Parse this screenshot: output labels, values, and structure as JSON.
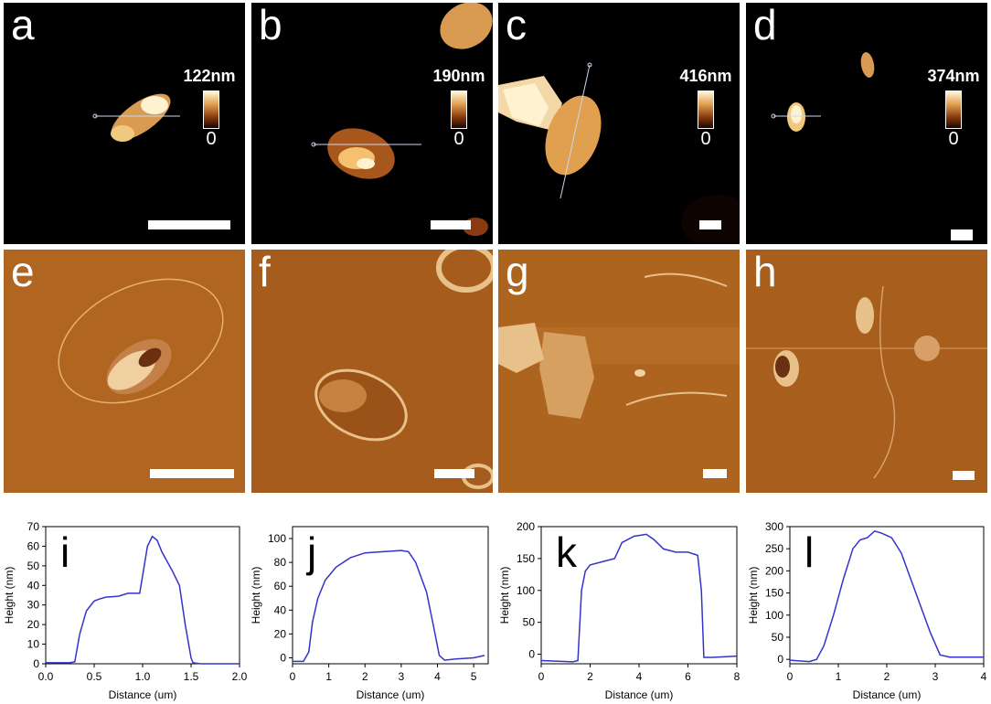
{
  "images": [
    {
      "label": "a",
      "colorbar_max": "122nm",
      "colorbar_min": "0"
    },
    {
      "label": "b",
      "colorbar_max": "190nm",
      "colorbar_min": "0"
    },
    {
      "label": "c",
      "colorbar_max": "416nm",
      "colorbar_min": "0"
    },
    {
      "label": "d",
      "colorbar_max": "374nm",
      "colorbar_min": "0"
    },
    {
      "label": "e"
    },
    {
      "label": "f"
    },
    {
      "label": "g"
    },
    {
      "label": "h"
    }
  ],
  "colors": {
    "line": "#3333cc",
    "afm_dark": "#000000",
    "afm_phase": "#a0561c"
  },
  "chart_data": [
    {
      "type": "line",
      "panel": "i",
      "xlabel": "Distance (um)",
      "ylabel": "Height (nm)",
      "xlim": [
        0,
        2.0
      ],
      "ylim": [
        0,
        70
      ],
      "xticks": [
        "0.0",
        "0.5",
        "1.0",
        "1.5",
        "2.0"
      ],
      "yticks": [
        "0",
        "10",
        "20",
        "30",
        "40",
        "50",
        "60",
        "70"
      ],
      "x": [
        0.0,
        0.25,
        0.3,
        0.35,
        0.42,
        0.5,
        0.55,
        0.62,
        0.75,
        0.85,
        0.97,
        1.0,
        1.05,
        1.1,
        1.15,
        1.2,
        1.3,
        1.38,
        1.44,
        1.5,
        1.52,
        1.6,
        2.0
      ],
      "y": [
        0.5,
        0.5,
        1,
        15,
        27,
        32,
        33,
        34,
        34.5,
        36,
        36,
        45,
        60,
        65,
        63,
        57,
        48,
        40,
        20,
        3,
        0.5,
        0,
        0
      ]
    },
    {
      "type": "line",
      "panel": "j",
      "xlabel": "Distance (um)",
      "ylabel": "Height (nm)",
      "xlim": [
        0,
        5.4
      ],
      "ylim": [
        -5,
        110
      ],
      "xticks": [
        "0",
        "1",
        "2",
        "3",
        "4",
        "5"
      ],
      "yticks": [
        "0",
        "20",
        "40",
        "60",
        "80",
        "100"
      ],
      "x": [
        0.0,
        0.3,
        0.45,
        0.55,
        0.7,
        0.9,
        1.2,
        1.6,
        2.0,
        2.5,
        3.0,
        3.2,
        3.4,
        3.7,
        3.9,
        4.05,
        4.2,
        4.5,
        5.0,
        5.3
      ],
      "y": [
        -3,
        -3,
        5,
        30,
        50,
        65,
        76,
        84,
        88,
        89,
        90,
        89,
        80,
        55,
        25,
        2,
        -2,
        -1,
        0,
        2
      ]
    },
    {
      "type": "line",
      "panel": "k",
      "xlabel": "Distance (um)",
      "ylabel": "Height (nm)",
      "xlim": [
        0,
        8
      ],
      "ylim": [
        -15,
        200
      ],
      "xticks": [
        "0",
        "2",
        "4",
        "6",
        "8"
      ],
      "yticks": [
        "0",
        "50",
        "100",
        "150",
        "200"
      ],
      "x": [
        0.0,
        1.3,
        1.5,
        1.65,
        1.8,
        2.0,
        2.5,
        3.0,
        3.3,
        3.8,
        4.3,
        4.6,
        5.0,
        5.5,
        6.0,
        6.4,
        6.55,
        6.65,
        7.0,
        8.0
      ],
      "y": [
        -10,
        -12,
        -10,
        100,
        130,
        140,
        145,
        150,
        175,
        185,
        188,
        180,
        165,
        160,
        160,
        155,
        100,
        -5,
        -5,
        -3
      ]
    },
    {
      "type": "line",
      "panel": "l",
      "xlabel": "Distance (um)",
      "ylabel": "Height (nm)",
      "xlim": [
        0,
        4
      ],
      "ylim": [
        -10,
        300
      ],
      "xticks": [
        "0",
        "1",
        "2",
        "3",
        "4"
      ],
      "yticks": [
        "0",
        "50",
        "100",
        "150",
        "200",
        "250",
        "300"
      ],
      "x": [
        0.0,
        0.4,
        0.55,
        0.7,
        0.9,
        1.1,
        1.3,
        1.45,
        1.6,
        1.75,
        1.9,
        2.1,
        2.3,
        2.5,
        2.7,
        2.9,
        3.1,
        3.3,
        4.0
      ],
      "y": [
        -2,
        -5,
        0,
        30,
        100,
        180,
        250,
        270,
        275,
        290,
        285,
        275,
        240,
        180,
        120,
        60,
        10,
        5,
        5
      ]
    }
  ]
}
